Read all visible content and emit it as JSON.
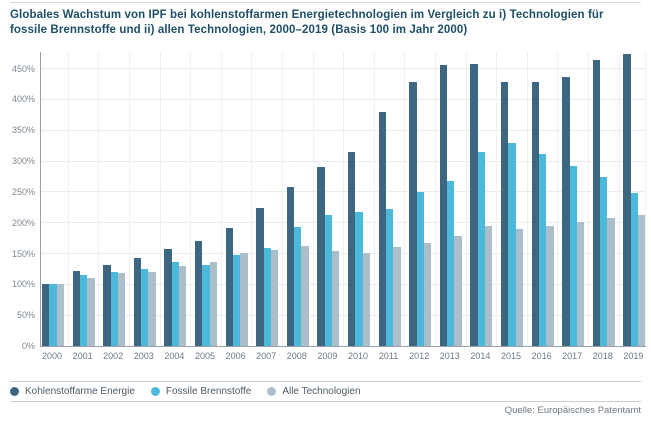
{
  "chart_data": {
    "type": "bar",
    "title": "Globales Wachstum von IPF bei kohlenstoffarmen Energietechnologien im Vergleich zu i) Technologien für fossile Brennstoffe und ii) allen Technologien, 2000–2019 (Basis 100 im Jahr 2000)",
    "source_note": "Quelle: Europäisches Patentamt",
    "categories": [
      "2000",
      "2001",
      "2002",
      "2003",
      "2004",
      "2005",
      "2006",
      "2007",
      "2008",
      "2009",
      "2010",
      "2011",
      "2012",
      "2013",
      "2014",
      "2015",
      "2016",
      "2017",
      "2018",
      "2019"
    ],
    "series": [
      {
        "name": "Kohlenstoffarme Energie",
        "color": "#3d6781",
        "values": [
          100,
          121,
          131,
          142,
          157,
          171,
          192,
          224,
          258,
          290,
          315,
          380,
          428,
          456,
          458,
          428,
          428,
          437,
          464,
          473
        ]
      },
      {
        "name": "Fossile Brennstoffe",
        "color": "#4cb9da",
        "values": [
          100,
          116,
          120,
          125,
          137,
          132,
          148,
          159,
          193,
          213,
          217,
          222,
          250,
          267,
          314,
          329,
          311,
          292,
          275,
          249
        ]
      },
      {
        "name": "Alle Technologien",
        "color": "#adbecb",
        "values": [
          100,
          111,
          118,
          120,
          130,
          137,
          151,
          156,
          163,
          154,
          151,
          160,
          167,
          179,
          194,
          190,
          195,
          201,
          208,
          212
        ]
      }
    ],
    "y_tick_labels": [
      "0%",
      "50%",
      "100%",
      "150%",
      "200%",
      "250%",
      "300%",
      "350%",
      "400%",
      "450%"
    ],
    "y_tick_values": [
      0,
      50,
      100,
      150,
      200,
      250,
      300,
      350,
      400,
      450
    ],
    "ylim": [
      0,
      477
    ],
    "xlabel": "",
    "ylabel": "",
    "grid": true,
    "legend_position": "bottom"
  }
}
